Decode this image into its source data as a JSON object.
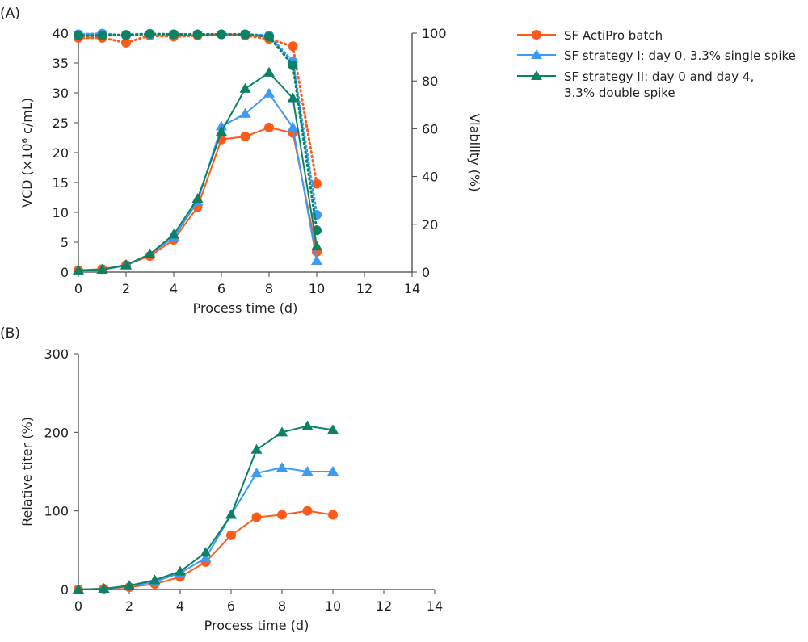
{
  "colors": {
    "orange": "#ff5a1a",
    "blue": "#3d9bf5",
    "green": "#0b8266",
    "axis": "#444444"
  },
  "legend": [
    {
      "label": "SF ActiPro batch",
      "color": "#ff5a1a",
      "marker": "circle"
    },
    {
      "label": "SF strategy I: day 0, 3.3% single spike",
      "color": "#3d9bf5",
      "marker": "triangle"
    },
    {
      "label": "SF strategy II: day 0 and day 4,",
      "label2": "3.3% double spike",
      "color": "#0b8266",
      "marker": "triangle"
    }
  ],
  "chart_data": [
    {
      "panel": "(A)",
      "type": "line",
      "xlabel": "Process time (d)",
      "ylabel": "VCD (×10⁶ c/mL)",
      "y2label": "Viability (%)",
      "xlim": [
        0,
        14
      ],
      "ylim": [
        0,
        40
      ],
      "y2lim": [
        0,
        100
      ],
      "xticks": [
        0,
        2,
        4,
        6,
        8,
        10,
        12,
        14
      ],
      "yticks": [
        0,
        5,
        10,
        15,
        20,
        25,
        30,
        35,
        40
      ],
      "y2ticks": [
        0,
        20,
        40,
        60,
        80,
        100
      ],
      "x": [
        0,
        1,
        2,
        3,
        4,
        5,
        6,
        7,
        8,
        9,
        10
      ],
      "series": [
        {
          "name": "SF ActiPro batch",
          "axis": "left",
          "values": [
            0.3,
            0.5,
            1.2,
            2.7,
            5.4,
            10.9,
            22.2,
            22.7,
            24.2,
            23.3,
            3.4
          ]
        },
        {
          "name": "SF strategy I: day 0, 3.3% single spike",
          "axis": "left",
          "values": [
            0.2,
            0.4,
            1.1,
            3.0,
            5.8,
            11.8,
            24.4,
            26.5,
            29.9,
            24.2,
            1.9
          ]
        },
        {
          "name": "SF strategy II: day 0 and day 4, 3.3% double spike",
          "axis": "left",
          "values": [
            0.3,
            0.4,
            1.2,
            3.0,
            6.3,
            12.3,
            23.5,
            30.7,
            33.4,
            29.1,
            4.3
          ]
        },
        {
          "name": "SF ActiPro batch",
          "axis": "right",
          "style": "dotted",
          "values": [
            98,
            98,
            96,
            99,
            98.5,
            99,
            99.5,
            99,
            97.5,
            94.5,
            37
          ]
        },
        {
          "name": "SF strategy I: day 0, 3.3% single spike",
          "axis": "right",
          "style": "dotted",
          "values": [
            99.5,
            99.8,
            99,
            99.5,
            99.5,
            99.5,
            99.5,
            99.5,
            99,
            88,
            24
          ]
        },
        {
          "name": "SF strategy II: day 0 and day 4, 3.3% double spike",
          "axis": "right",
          "style": "dotted",
          "values": [
            99,
            99,
            99.3,
            99.7,
            99.5,
            99.5,
            99.5,
            99.5,
            98.5,
            86.5,
            17.5
          ]
        }
      ]
    },
    {
      "panel": "(B)",
      "type": "line",
      "xlabel": "Process time (d)",
      "ylabel": "Relative titer (%)",
      "xlim": [
        0,
        14
      ],
      "ylim": [
        0,
        300
      ],
      "xticks": [
        0,
        2,
        4,
        6,
        8,
        10,
        12,
        14
      ],
      "yticks": [
        0,
        100,
        200,
        300
      ],
      "x": [
        0,
        1,
        2,
        3,
        4,
        5,
        6,
        7,
        8,
        9,
        10
      ],
      "series": [
        {
          "name": "SF ActiPro batch",
          "values": [
            0,
            1,
            3,
            7,
            16,
            35,
            69,
            92,
            95,
            100,
            95
          ]
        },
        {
          "name": "SF strategy I: day 0, 3.3% single spike",
          "values": [
            0,
            1,
            4,
            10,
            21,
            40,
            95,
            148,
            155,
            150,
            150
          ]
        },
        {
          "name": "SF strategy II: day 0 and day 4, 3.3% double spike",
          "values": [
            0,
            1,
            5,
            12,
            23,
            47,
            95,
            178,
            200,
            208,
            203
          ]
        }
      ]
    }
  ]
}
